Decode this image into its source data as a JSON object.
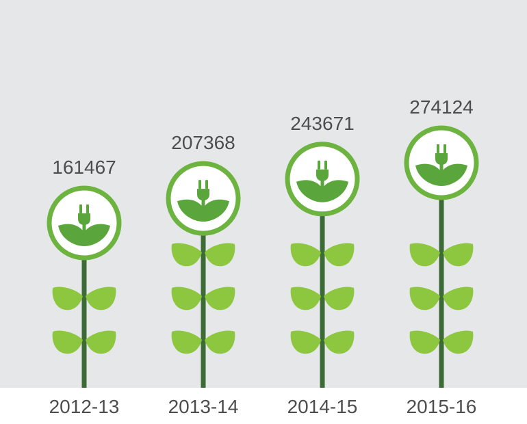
{
  "chart_data": {
    "type": "bar",
    "categories": [
      "2012-13",
      "2013-14",
      "2014-15",
      "2015-16"
    ],
    "values": [
      161467,
      207368,
      243671,
      274124
    ],
    "title": "",
    "xlabel": "",
    "ylabel": "",
    "grid": false,
    "legend": "none"
  },
  "colors": {
    "background": "#e6e7e9",
    "stem": "#3d6b35",
    "leaf": "#8dc63f",
    "ring": "#6cb33f",
    "icon": "#5aa63c"
  },
  "icon_name": "plug-sprout-icon"
}
